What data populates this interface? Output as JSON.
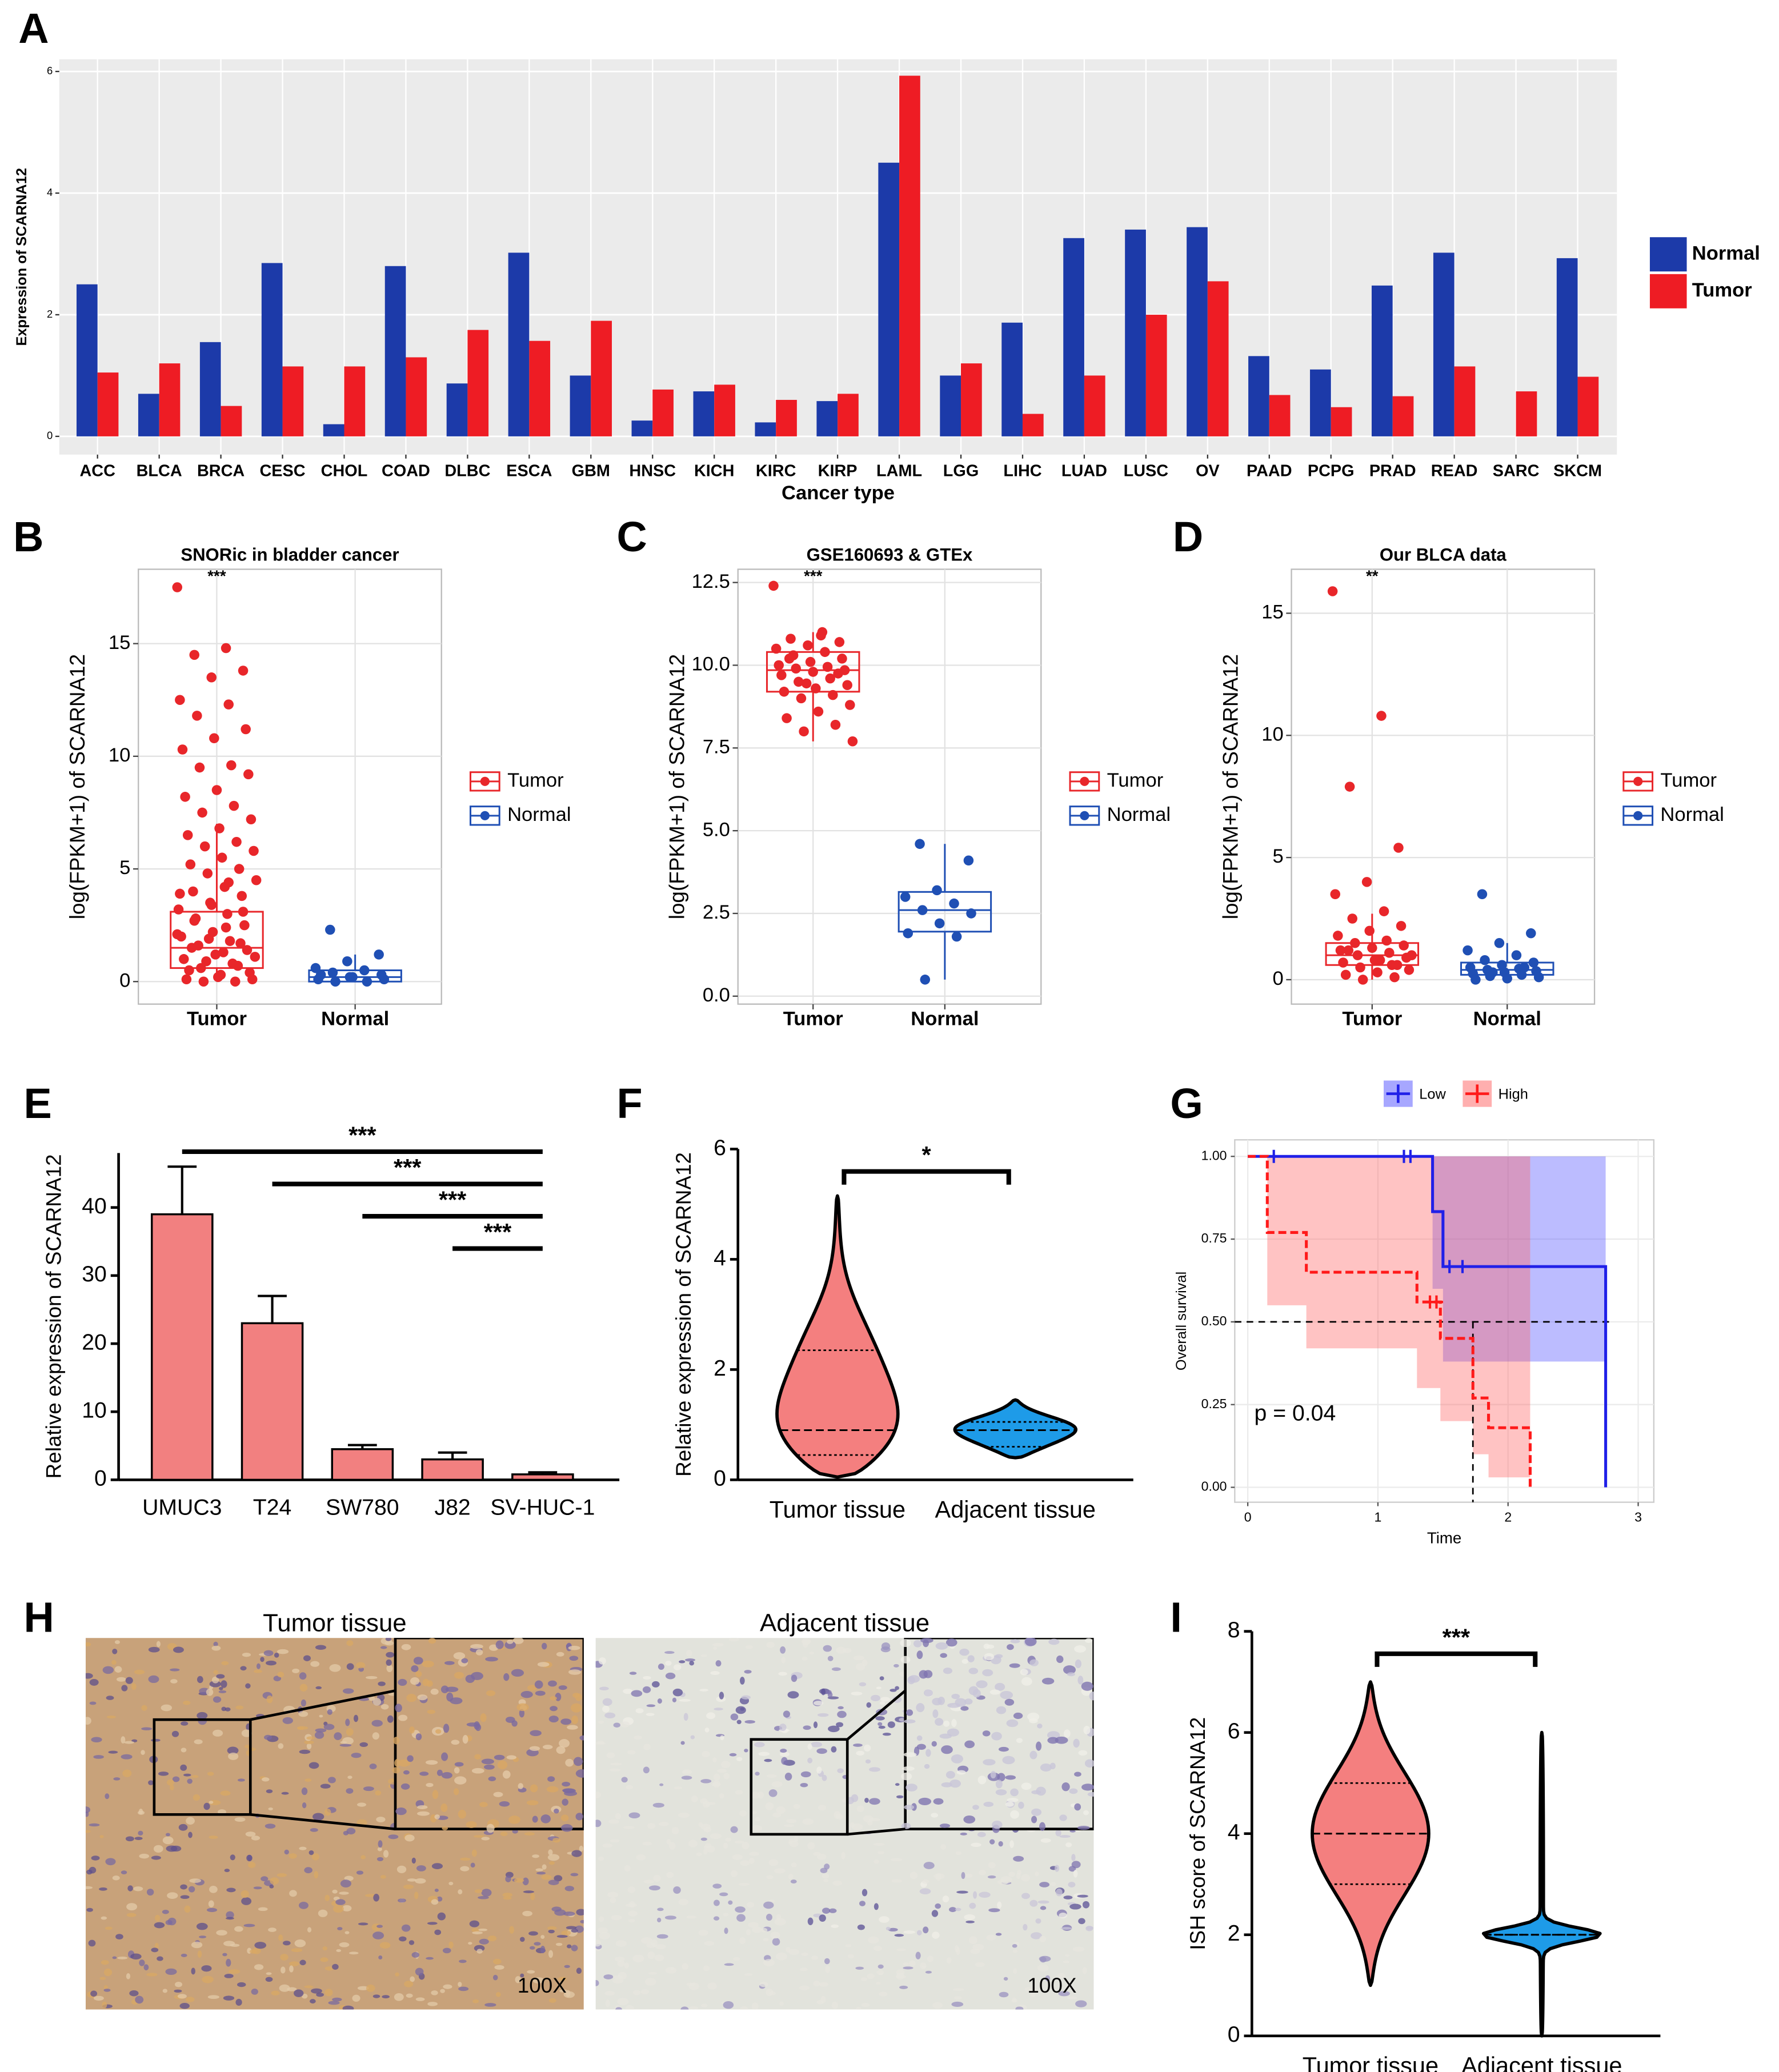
{
  "chart_data": [
    {
      "type": "bar",
      "panel": "A",
      "y_label": "Expression of SCARNA12",
      "x_label": "Cancer type",
      "categories": [
        "ACC",
        "BLCA",
        "BRCA",
        "CESC",
        "CHOL",
        "COAD",
        "DLBC",
        "ESCA",
        "GBM",
        "HNSC",
        "KICH",
        "KIRC",
        "KIRP",
        "LAML",
        "LGG",
        "LIHC",
        "LUAD",
        "LUSC",
        "OV",
        "PAAD",
        "PCPG",
        "PRAD",
        "READ",
        "SARC",
        "SKCM"
      ],
      "series": [
        {
          "name": "Normal",
          "color": "#1c3aa9",
          "values": [
            2.5,
            0.7,
            1.55,
            2.85,
            0.2,
            2.8,
            0.87,
            3.02,
            1.0,
            0.26,
            0.74,
            0.23,
            0.58,
            4.5,
            1.0,
            1.87,
            3.26,
            3.4,
            3.44,
            1.32,
            1.1,
            2.48,
            3.02,
            null,
            2.93
          ]
        },
        {
          "name": "Tumor",
          "color": "#ee1c24",
          "values": [
            1.05,
            1.2,
            0.5,
            1.15,
            1.15,
            1.3,
            1.75,
            1.57,
            1.9,
            0.77,
            0.85,
            0.6,
            0.7,
            5.93,
            1.2,
            0.37,
            1.0,
            2.0,
            2.55,
            0.68,
            0.48,
            0.66,
            1.15,
            0.74,
            0.98
          ]
        }
      ],
      "ylim": [
        -0.3,
        6.2
      ],
      "yticks": [
        0,
        2,
        4,
        6
      ],
      "grid": true,
      "legend": "right"
    },
    {
      "type": "box",
      "panel": "B",
      "title": "SNORic in bladder cancer",
      "y_label": "log(FPKM+1) of SCARNA12",
      "categories": [
        "Tumor",
        "Normal"
      ],
      "annotation": "***",
      "series": [
        {
          "name": "Tumor",
          "color": "#e8262a",
          "whisker_low": 0,
          "q1": 0.6,
          "median": 1.5,
          "q3": 3.1,
          "whisker_high": 7.0,
          "points": [
            17.5,
            14.8,
            14.5,
            13.8,
            13.5,
            12.5,
            12.3,
            11.8,
            11.2,
            10.8,
            10.3,
            9.6,
            9.5,
            9.2,
            8.5,
            8.2,
            7.8,
            7.5,
            7.2,
            6.8,
            6.5,
            6.2,
            6.0,
            5.8,
            5.5,
            5.2,
            5.0,
            4.8,
            4.5,
            4.2,
            4.0,
            3.8,
            3.5,
            3.2,
            3.0,
            2.8,
            2.5,
            2.2,
            2.0,
            1.8,
            1.6,
            1.4,
            1.2,
            1.0,
            0.8,
            0.6,
            0.4,
            0.2,
            0.1,
            0.0,
            0.0,
            0.1,
            0.3,
            0.5,
            0.7,
            0.9,
            1.1,
            1.3,
            1.5,
            1.7,
            1.9,
            2.1,
            2.4,
            2.7,
            3.1,
            3.4,
            3.9,
            4.4
          ]
        },
        {
          "name": "Normal",
          "color": "#1f4fb4",
          "whisker_low": 0,
          "q1": 0,
          "median": 0.2,
          "q3": 0.5,
          "whisker_high": 1.2,
          "points": [
            2.3,
            1.2,
            0.9,
            0.6,
            0.5,
            0.4,
            0.3,
            0.2,
            0.1,
            0.0,
            0.0,
            0.1,
            0.2,
            0.3
          ]
        }
      ],
      "ylim": [
        -1,
        18.3
      ],
      "yticks": [
        0,
        5,
        10,
        15
      ],
      "grid": true,
      "legend": "right"
    },
    {
      "type": "box",
      "panel": "C",
      "title": "GSE160693 & GTEx",
      "y_label": "log(FPKM+1) of SCARNA12",
      "categories": [
        "Tumor",
        "Normal"
      ],
      "annotation": "***",
      "series": [
        {
          "name": "Tumor",
          "color": "#e8262a",
          "whisker_low": 7.7,
          "q1": 9.2,
          "median": 9.85,
          "q3": 10.4,
          "whisker_high": 11.0,
          "points": [
            12.4,
            11.0,
            10.8,
            10.7,
            10.6,
            10.5,
            10.4,
            10.3,
            10.2,
            10.1,
            10.0,
            9.95,
            9.9,
            9.85,
            9.8,
            9.7,
            9.6,
            9.5,
            9.4,
            9.3,
            9.2,
            9.1,
            9.0,
            8.8,
            8.6,
            8.4,
            8.2,
            8.0,
            7.7,
            10.9,
            10.2,
            9.75,
            9.45
          ]
        },
        {
          "name": "Normal",
          "color": "#1f4fb4",
          "whisker_low": 0.5,
          "q1": 1.95,
          "median": 2.6,
          "q3": 3.15,
          "whisker_high": 4.6,
          "points": [
            4.6,
            4.1,
            3.2,
            3.0,
            2.8,
            2.6,
            2.5,
            2.2,
            1.9,
            1.8,
            0.5
          ]
        }
      ],
      "ylim": [
        -0.24,
        12.9
      ],
      "yticks": [
        {
          "value": 0,
          "label": "0.0"
        },
        2.5,
        {
          "value": 5,
          "label": "5.0"
        },
        7.5,
        {
          "value": 10,
          "label": "10.0"
        },
        12.5
      ],
      "grid": true,
      "legend": "right"
    },
    {
      "type": "box",
      "panel": "D",
      "title": "Our BLCA data",
      "y_label": "log(FPKM+1) of SCARNA12",
      "categories": [
        "Tumor",
        "Normal"
      ],
      "annotation": "**",
      "series": [
        {
          "name": "Tumor",
          "color": "#e8262a",
          "whisker_low": 0,
          "q1": 0.6,
          "median": 1.0,
          "q3": 1.5,
          "whisker_high": 2.7,
          "points": [
            15.9,
            10.8,
            7.9,
            5.4,
            4.0,
            3.5,
            2.8,
            2.5,
            2.2,
            2.0,
            1.8,
            1.6,
            1.5,
            1.4,
            1.3,
            1.2,
            1.1,
            1.0,
            0.9,
            0.8,
            0.7,
            0.6,
            0.5,
            0.4,
            0.3,
            0.2,
            0.1,
            0.0,
            1.0,
            0.8,
            1.2,
            0.6
          ]
        },
        {
          "name": "Normal",
          "color": "#1f4fb4",
          "whisker_low": 0,
          "q1": 0.2,
          "median": 0.4,
          "q3": 0.7,
          "whisker_high": 1.5,
          "points": [
            3.5,
            1.9,
            1.5,
            1.2,
            1.0,
            0.8,
            0.7,
            0.6,
            0.5,
            0.45,
            0.4,
            0.35,
            0.3,
            0.25,
            0.2,
            0.15,
            0.1,
            0.05,
            0.0,
            0.5,
            0.3
          ]
        }
      ],
      "ylim": [
        -1,
        16.8
      ],
      "yticks": [
        0,
        5,
        10,
        15
      ],
      "grid": true,
      "legend": "right"
    },
    {
      "type": "barerr",
      "panel": "E",
      "y_label": "Relative expression of SCARNA12",
      "categories": [
        "UMUC3",
        "T24",
        "SW780",
        "J82",
        "SV-HUC-1"
      ],
      "color": "#f28080",
      "values": [
        39,
        23,
        4.5,
        3,
        0.8
      ],
      "errors": [
        7,
        4,
        0.6,
        1,
        0.3
      ],
      "comparisons": [
        {
          "groups": [
            "UMUC3",
            "SV-HUC-1"
          ],
          "label": "***"
        },
        {
          "groups": [
            "T24",
            "SV-HUC-1"
          ],
          "label": "***"
        },
        {
          "groups": [
            "SW780",
            "SV-HUC-1"
          ],
          "label": "***"
        },
        {
          "groups": [
            "J82",
            "SV-HUC-1"
          ],
          "label": "***"
        }
      ],
      "ylim": [
        0,
        48
      ],
      "yticks": [
        0,
        10,
        20,
        30,
        40
      ]
    },
    {
      "type": "violin",
      "panel": "F",
      "y_label": "Relative expression of SCARNA12",
      "categories": [
        "Tumor tissue",
        "Adjacent tissue"
      ],
      "series": [
        {
          "color": "#f47f7f",
          "min": 0.05,
          "q1": 0.45,
          "median": 0.9,
          "q3": 2.35,
          "max": 5.15
        },
        {
          "color": "#1e9be8",
          "min": 0.4,
          "q1": 0.6,
          "median": 0.9,
          "q3": 1.05,
          "max": 1.45
        }
      ],
      "comparisons": [
        {
          "groups": [
            "Tumor tissue",
            "Adjacent tissue"
          ],
          "label": "*"
        }
      ],
      "ylim": [
        0,
        6
      ],
      "yticks": [
        0,
        2,
        4,
        6
      ]
    },
    {
      "type": "km",
      "panel": "G",
      "y_label": "Overall survival",
      "x_label": "Time",
      "annotation": "p = 0.04",
      "series": [
        {
          "name": "Low",
          "color": "#2020e8",
          "band_color": "#5050ff",
          "time": [
            0,
            1.42,
            1.5,
            2.75
          ],
          "survival": [
            1,
            0.833,
            0.667,
            0
          ],
          "lower": [
            1,
            0.6,
            0.38,
            0
          ],
          "upper": [
            1,
            1,
            1,
            1
          ],
          "censor_time": [
            0.2,
            1.2,
            1.25,
            1.55,
            1.65
          ],
          "censor_survival": [
            1,
            1,
            1,
            0.667,
            0.667
          ]
        },
        {
          "name": "High",
          "color": "#ff1a1a",
          "band_color": "#ff6060",
          "time": [
            0,
            0.15,
            0.45,
            1.3,
            1.48,
            1.73,
            1.85,
            2.17
          ],
          "survival": [
            1,
            0.77,
            0.65,
            0.56,
            0.45,
            0.27,
            0.18,
            0
          ],
          "lower": [
            1,
            0.55,
            0.42,
            0.3,
            0.2,
            0.1,
            0.03,
            0
          ],
          "upper": [
            1,
            1,
            1,
            1,
            1,
            1,
            1,
            1
          ],
          "censor_time": [
            1.4,
            1.45
          ],
          "censor_survival": [
            0.56,
            0.56
          ]
        }
      ],
      "median_line": {
        "survival": 0.5,
        "time": 1.73
      },
      "xlim": [
        -0.1,
        3.12
      ],
      "xticks": [
        0,
        1,
        2,
        3
      ],
      "ylim": [
        -0.045,
        1.05
      ],
      "yticks": [
        {
          "value": 0,
          "label": "0.00"
        },
        0.25,
        {
          "value": 0.5,
          "label": "0.50"
        },
        0.75,
        {
          "value": 1,
          "label": "1.00"
        }
      ],
      "grid": true,
      "legend": "top"
    },
    {
      "type": "violin",
      "panel": "I",
      "y_label": "ISH score of SCARNA12",
      "categories": [
        "Tumor tissue",
        "Adjacent tissue"
      ],
      "series": [
        {
          "color": "#f47f7f",
          "min": 1,
          "q1": 3,
          "median": 4,
          "q3": 5,
          "max": 7
        },
        {
          "color": "#1e9be8",
          "min": 0,
          "q1": 2,
          "median": 2,
          "q3": 2,
          "max": 6
        }
      ],
      "comparisons": [
        {
          "groups": [
            "Tumor tissue",
            "Adjacent tissue"
          ],
          "label": "***"
        }
      ],
      "ylim": [
        0,
        8
      ],
      "yticks": [
        0,
        2,
        4,
        6,
        8
      ]
    }
  ],
  "panel_h": {
    "panel": "H",
    "images": [
      {
        "title": "Tumor tissue",
        "magnification": "100X"
      },
      {
        "title": "Adjacent tissue",
        "magnification": "100X"
      }
    ]
  }
}
